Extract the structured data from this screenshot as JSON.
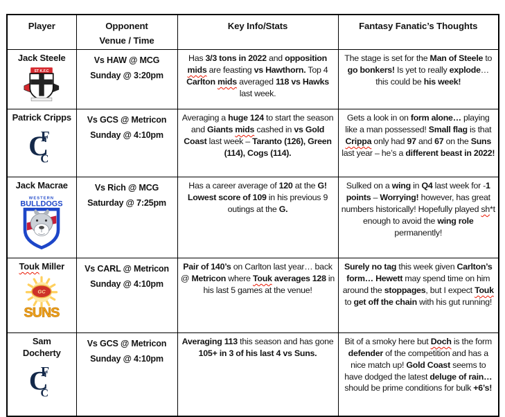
{
  "table": {
    "headers": {
      "player": "Player",
      "opponent_line1": "Opponent",
      "opponent_line2": "Venue / Time",
      "key_info": "Key Info/Stats",
      "thoughts": "Fantasy Fanatic’s Thoughts"
    },
    "rows": [
      {
        "name_runs": [
          {
            "t": "Jack Steele",
            "b": 1
          }
        ],
        "team": "st-kilda",
        "venue": [
          "Vs HAW @ MCG",
          "Sunday @ 3:20pm"
        ],
        "info_runs": [
          {
            "t": "Has "
          },
          {
            "t": "3/3 tons in 2022",
            "b": 1
          },
          {
            "t": " and "
          },
          {
            "t": "opposition ",
            "b": 1
          },
          {
            "t": "mids",
            "b": 1,
            "w": 1
          },
          {
            "t": " are feasting "
          },
          {
            "t": "vs Hawthorn.",
            "b": 1
          },
          {
            "t": " Top 4 "
          },
          {
            "t": "Carlton ",
            "b": 1
          },
          {
            "t": "mids",
            "b": 1,
            "w": 1
          },
          {
            "t": " averaged "
          },
          {
            "t": "118 vs Hawks",
            "b": 1
          },
          {
            "t": " last week."
          }
        ],
        "thoughts_runs": [
          {
            "t": "The stage is set for the "
          },
          {
            "t": "Man of Steele",
            "b": 1
          },
          {
            "t": " to "
          },
          {
            "t": "go bonkers!",
            "b": 1
          },
          {
            "t": " Is yet to really "
          },
          {
            "t": "explode",
            "b": 1
          },
          {
            "t": "… this could be "
          },
          {
            "t": "his week!",
            "b": 1
          }
        ]
      },
      {
        "name_runs": [
          {
            "t": "Patrick Cripps",
            "b": 1
          }
        ],
        "team": "carlton",
        "venue": [
          "Vs GCS @ Metricon",
          "Sunday @ 4:10pm"
        ],
        "info_runs": [
          {
            "t": "Averaging a "
          },
          {
            "t": "huge 124",
            "b": 1
          },
          {
            "t": " to start the season and "
          },
          {
            "t": "Giants ",
            "b": 1
          },
          {
            "t": "mids",
            "b": 1,
            "w": 1
          },
          {
            "t": " cashed in "
          },
          {
            "t": "vs Gold Coast",
            "b": 1
          },
          {
            "t": " last week – "
          },
          {
            "t": "Taranto (126), Green (114), Cogs (114).",
            "b": 1
          }
        ],
        "thoughts_runs": [
          {
            "t": "Gets a look in on "
          },
          {
            "t": "form alone…",
            "b": 1
          },
          {
            "t": " playing like a man possessed! "
          },
          {
            "t": "Small flag",
            "b": 1
          },
          {
            "t": " is that "
          },
          {
            "t": "Crippa",
            "b": 1,
            "w": 1
          },
          {
            "t": " only had "
          },
          {
            "t": "97",
            "b": 1
          },
          {
            "t": " and "
          },
          {
            "t": "67",
            "b": 1
          },
          {
            "t": " on the "
          },
          {
            "t": "Suns",
            "b": 1
          },
          {
            "t": " last year – he’s a "
          },
          {
            "t": "different beast in 2022!",
            "b": 1
          }
        ]
      },
      {
        "name_runs": [
          {
            "t": "Jack Macrae",
            "b": 1
          }
        ],
        "team": "bulldogs",
        "venue": [
          "Vs Rich @ MCG",
          "Saturday @ 7:25pm"
        ],
        "info_runs": [
          {
            "t": "Has a career average of "
          },
          {
            "t": "120",
            "b": 1
          },
          {
            "t": " at the "
          },
          {
            "t": "G! Lowest score of 109",
            "b": 1
          },
          {
            "t": " in his previous 9 outings at the "
          },
          {
            "t": "G.",
            "b": 1
          }
        ],
        "thoughts_runs": [
          {
            "t": "Sulked on a "
          },
          {
            "t": "wing",
            "b": 1
          },
          {
            "t": " in "
          },
          {
            "t": "Q4",
            "b": 1
          },
          {
            "t": " last week for -"
          },
          {
            "t": "1 points",
            "b": 1
          },
          {
            "t": " – "
          },
          {
            "t": "Worrying!",
            "b": 1
          },
          {
            "t": " however, has great numbers historically! Hopefully played "
          },
          {
            "t": "sh",
            "w": 1
          },
          {
            "t": "*t enough to avoid the "
          },
          {
            "t": "wing role",
            "b": 1
          },
          {
            "t": " permanently!"
          }
        ]
      },
      {
        "name_runs": [
          {
            "t": "Touk",
            "b": 1,
            "w": 1
          },
          {
            "t": " Miller",
            "b": 1
          }
        ],
        "team": "suns",
        "venue": [
          "Vs CARL @ Metricon",
          "Sunday @ 4:10pm"
        ],
        "info_runs": [
          {
            "t": "Pair of 140’s",
            "b": 1
          },
          {
            "t": " on Carlton last year… back @ "
          },
          {
            "t": "Metricon",
            "b": 1
          },
          {
            "t": " where "
          },
          {
            "t": "Touk",
            "b": 1,
            "w": 1
          },
          {
            "t": " averages 128",
            "b": 1
          },
          {
            "t": " in his last 5 games at the venue!"
          }
        ],
        "thoughts_runs": [
          {
            "t": "Surely no tag",
            "b": 1
          },
          {
            "t": " this week given "
          },
          {
            "t": "Carlton’s form… Hewett",
            "b": 1
          },
          {
            "t": " may spend time on him around the "
          },
          {
            "t": "stoppages",
            "b": 1
          },
          {
            "t": ", but I expect "
          },
          {
            "t": "Touk",
            "b": 1,
            "w": 1
          },
          {
            "t": " to "
          },
          {
            "t": "get off the chain",
            "b": 1
          },
          {
            "t": " with his gut running!"
          }
        ]
      },
      {
        "name_runs": [
          {
            "t": "Sam Docherty",
            "b": 1
          }
        ],
        "team": "carlton",
        "venue": [
          "Vs GCS @ Metricon",
          "Sunday @ 4:10pm"
        ],
        "info_runs": [
          {
            "t": "Averaging 113",
            "b": 1
          },
          {
            "t": " this season and has gone "
          },
          {
            "t": "105+ in 3 of his last 4 vs Suns.",
            "b": 1
          }
        ],
        "thoughts_runs": [
          {
            "t": "Bit of a smoky here but "
          },
          {
            "t": "Doch",
            "b": 1,
            "w": 1
          },
          {
            "t": " is the form "
          },
          {
            "t": "defender",
            "b": 1
          },
          {
            "t": " of the competition and has a nice match up! "
          },
          {
            "t": "Gold Coast",
            "b": 1
          },
          {
            "t": " seems to have dodged the latest "
          },
          {
            "t": "deluge of rain…",
            "b": 1
          },
          {
            "t": " should be prime conditions for bulk "
          },
          {
            "t": "+6’s!",
            "b": 1
          }
        ]
      }
    ]
  },
  "logos": {
    "st_kilda": {
      "banner": "ST K.F.C"
    },
    "carlton": {
      "l1": "C",
      "l2": "F",
      "l3": "C"
    },
    "bulldogs": {
      "top1": "WESTERN",
      "top2": "BULLDOGS"
    },
    "suns": {
      "center": "GC",
      "label": "SUNS"
    }
  },
  "colors": {
    "squiggle_red": "#ea1500",
    "st_kilda_red": "#d6292e",
    "carlton_navy": "#14294a",
    "bulldogs_blue": "#1d46c8",
    "bulldogs_red": "#c41e3a",
    "suns_gold": "#efa21d",
    "suns_red": "#ce3129"
  }
}
